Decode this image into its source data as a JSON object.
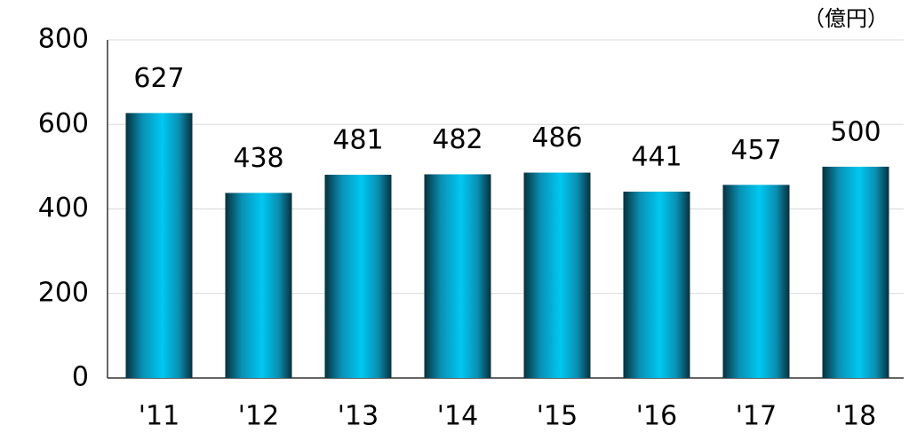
{
  "chart_data": {
    "type": "bar",
    "unit_label": "（億円）",
    "categories": [
      "'11",
      "'12",
      "'13",
      "'14",
      "'15",
      "'16",
      "'17",
      "'18"
    ],
    "values": [
      627,
      438,
      481,
      482,
      486,
      441,
      457,
      500
    ],
    "color": "#00c0ec",
    "ylim": [
      0,
      800
    ],
    "yticks": [
      0,
      200,
      400,
      600,
      800
    ],
    "grid": true
  }
}
